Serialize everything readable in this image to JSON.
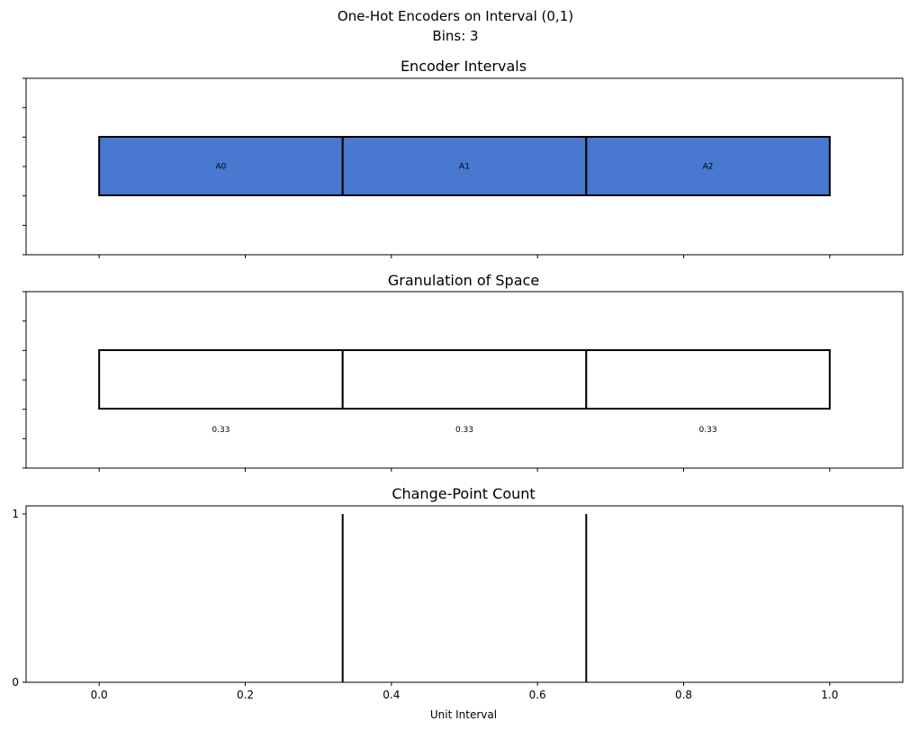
{
  "figure": {
    "title_line1": "One-Hot Encoders on Interval (0,1)",
    "title_line2": "Bins: 3"
  },
  "chart_data": [
    {
      "type": "bar",
      "title": "Encoder Intervals",
      "xlim": [
        -0.1,
        1.1
      ],
      "y_ticks_labeled": false,
      "intervals": [
        {
          "label": "A0",
          "start": 0.0,
          "end": 0.3333
        },
        {
          "label": "A1",
          "start": 0.3333,
          "end": 0.6667
        },
        {
          "label": "A2",
          "start": 0.6667,
          "end": 1.0
        }
      ],
      "fill_color": "#4878cf"
    },
    {
      "type": "bar",
      "title": "Granulation of Space",
      "xlim": [
        -0.1,
        1.1
      ],
      "y_ticks_labeled": false,
      "intervals": [
        {
          "label": "0.33",
          "start": 0.0,
          "end": 0.3333
        },
        {
          "label": "0.33",
          "start": 0.3333,
          "end": 0.6667
        },
        {
          "label": "0.33",
          "start": 0.6667,
          "end": 1.0
        }
      ],
      "fill_color": "#ffffff"
    },
    {
      "type": "bar",
      "title": "Change-Point Count",
      "xlabel": "Unit Interval",
      "xlim": [
        -0.1,
        1.1
      ],
      "ylim": [
        0,
        1
      ],
      "x_ticks": [
        "0.0",
        "0.2",
        "0.4",
        "0.6",
        "0.8",
        "1.0"
      ],
      "x_tick_values": [
        0.0,
        0.2,
        0.4,
        0.6,
        0.8,
        1.0
      ],
      "y_ticks": [
        "0",
        "1"
      ],
      "y_tick_values": [
        0,
        1
      ],
      "change_points": [
        {
          "x": 0.3333,
          "count": 1
        },
        {
          "x": 0.6667,
          "count": 1
        }
      ]
    }
  ]
}
